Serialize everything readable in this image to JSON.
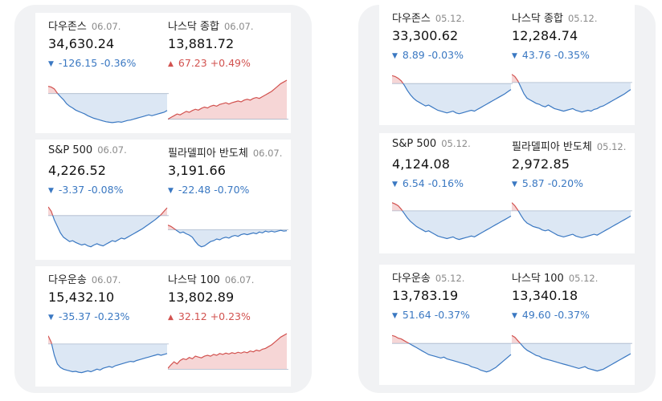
{
  "colors": {
    "down": "#3a78c2",
    "up": "#d2524f"
  },
  "icons": {
    "down": "triangle-down-icon",
    "up": "triangle-up-icon"
  },
  "panels": [
    {
      "cards": [
        {
          "name": "다우존스",
          "date": "06.07.",
          "price": "34,630.24",
          "change": "-126.15",
          "percent": "-0.36%",
          "direction": "down",
          "sparkline": [
            0.86,
            0.84,
            0.8,
            0.7,
            0.62,
            0.55,
            0.46,
            0.4,
            0.36,
            0.31,
            0.28,
            0.25,
            0.22,
            0.18,
            0.15,
            0.12,
            0.1,
            0.08,
            0.06,
            0.04,
            0.03,
            0.02,
            0.03,
            0.04,
            0.03,
            0.05,
            0.07,
            0.08,
            0.1,
            0.12,
            0.14,
            0.16,
            0.18,
            0.2,
            0.18,
            0.2,
            0.22,
            0.24,
            0.26,
            0.3
          ]
        },
        {
          "name": "나스닥 종합",
          "date": "06.07.",
          "price": "13,881.72",
          "change": "67.23",
          "percent": "+0.49%",
          "direction": "up",
          "sparkline": [
            0.1,
            0.14,
            0.18,
            0.22,
            0.2,
            0.24,
            0.28,
            0.26,
            0.3,
            0.33,
            0.31,
            0.35,
            0.38,
            0.36,
            0.4,
            0.42,
            0.4,
            0.44,
            0.46,
            0.48,
            0.45,
            0.48,
            0.5,
            0.52,
            0.5,
            0.54,
            0.56,
            0.54,
            0.58,
            0.6,
            0.58,
            0.62,
            0.66,
            0.7,
            0.74,
            0.8,
            0.86,
            0.92,
            0.96,
            1.0
          ]
        },
        {
          "name": "S&P 500",
          "date": "06.07.",
          "price": "4,226.52",
          "change": "-3.37",
          "percent": "-0.08%",
          "direction": "down",
          "sparkline": [
            1.0,
            0.9,
            0.7,
            0.55,
            0.4,
            0.3,
            0.25,
            0.2,
            0.22,
            0.18,
            0.15,
            0.12,
            0.14,
            0.1,
            0.08,
            0.12,
            0.15,
            0.12,
            0.1,
            0.14,
            0.18,
            0.22,
            0.2,
            0.24,
            0.28,
            0.26,
            0.3,
            0.34,
            0.38,
            0.42,
            0.46,
            0.5,
            0.55,
            0.6,
            0.65,
            0.7,
            0.76,
            0.82,
            0.9,
            0.98
          ]
        },
        {
          "name": "필라델피아 반도체",
          "date": "06.07.",
          "price": "3,191.66",
          "change": "-22.48",
          "percent": "-0.70%",
          "direction": "down",
          "sparkline": [
            0.58,
            0.55,
            0.5,
            0.45,
            0.4,
            0.42,
            0.38,
            0.35,
            0.3,
            0.2,
            0.12,
            0.08,
            0.1,
            0.15,
            0.2,
            0.22,
            0.26,
            0.24,
            0.28,
            0.3,
            0.28,
            0.32,
            0.34,
            0.32,
            0.36,
            0.38,
            0.36,
            0.38,
            0.4,
            0.38,
            0.42,
            0.4,
            0.44,
            0.42,
            0.44,
            0.42,
            0.44,
            0.46,
            0.44,
            0.45
          ]
        },
        {
          "name": "다우운송",
          "date": "06.07.",
          "price": "15,432.10",
          "change": "-35.37",
          "percent": "-0.23%",
          "direction": "down",
          "sparkline": [
            0.95,
            0.8,
            0.5,
            0.3,
            0.22,
            0.18,
            0.16,
            0.14,
            0.12,
            0.13,
            0.11,
            0.1,
            0.12,
            0.14,
            0.12,
            0.15,
            0.18,
            0.16,
            0.2,
            0.22,
            0.24,
            0.22,
            0.26,
            0.28,
            0.3,
            0.32,
            0.34,
            0.36,
            0.35,
            0.38,
            0.4,
            0.42,
            0.44,
            0.46,
            0.48,
            0.5,
            0.52,
            0.5,
            0.52,
            0.54
          ]
        },
        {
          "name": "나스닥 100",
          "date": "06.07.",
          "price": "13,802.89",
          "change": "32.12",
          "percent": "+0.23%",
          "direction": "up",
          "sparkline": [
            0.2,
            0.28,
            0.35,
            0.3,
            0.38,
            0.42,
            0.4,
            0.45,
            0.42,
            0.48,
            0.46,
            0.44,
            0.48,
            0.5,
            0.48,
            0.52,
            0.5,
            0.54,
            0.52,
            0.55,
            0.53,
            0.56,
            0.54,
            0.57,
            0.55,
            0.58,
            0.56,
            0.6,
            0.58,
            0.62,
            0.6,
            0.64,
            0.66,
            0.7,
            0.74,
            0.8,
            0.86,
            0.92,
            0.96,
            1.0
          ]
        }
      ]
    },
    {
      "cards": [
        {
          "name": "다우존스",
          "date": "05.12.",
          "price": "33,300.62",
          "change": "8.89",
          "percent": "-0.03%",
          "direction": "down",
          "sparkline": [
            0.92,
            0.9,
            0.86,
            0.8,
            0.7,
            0.58,
            0.48,
            0.4,
            0.34,
            0.3,
            0.26,
            0.22,
            0.24,
            0.2,
            0.16,
            0.12,
            0.1,
            0.08,
            0.06,
            0.08,
            0.1,
            0.06,
            0.04,
            0.06,
            0.08,
            0.1,
            0.12,
            0.1,
            0.14,
            0.18,
            0.22,
            0.26,
            0.3,
            0.34,
            0.38,
            0.42,
            0.46,
            0.5,
            0.55,
            0.6
          ]
        },
        {
          "name": "나스닥 종합",
          "date": "05.12.",
          "price": "12,284.74",
          "change": "43.76",
          "percent": "-0.35%",
          "direction": "down",
          "sparkline": [
            0.95,
            0.9,
            0.8,
            0.65,
            0.5,
            0.4,
            0.36,
            0.32,
            0.28,
            0.26,
            0.22,
            0.2,
            0.24,
            0.2,
            0.16,
            0.14,
            0.12,
            0.1,
            0.12,
            0.14,
            0.16,
            0.12,
            0.1,
            0.08,
            0.1,
            0.12,
            0.1,
            0.14,
            0.16,
            0.2,
            0.22,
            0.26,
            0.3,
            0.34,
            0.38,
            0.42,
            0.46,
            0.5,
            0.55,
            0.6
          ]
        },
        {
          "name": "S&P 500",
          "date": "05.12.",
          "price": "4,124.08",
          "change": "6.54",
          "percent": "-0.16%",
          "direction": "down",
          "sparkline": [
            0.95,
            0.92,
            0.88,
            0.8,
            0.7,
            0.6,
            0.52,
            0.46,
            0.4,
            0.36,
            0.32,
            0.28,
            0.3,
            0.26,
            0.22,
            0.18,
            0.16,
            0.14,
            0.12,
            0.14,
            0.16,
            0.12,
            0.1,
            0.12,
            0.14,
            0.16,
            0.18,
            0.16,
            0.2,
            0.24,
            0.28,
            0.32,
            0.36,
            0.4,
            0.44,
            0.48,
            0.52,
            0.56,
            0.6,
            0.64
          ]
        },
        {
          "name": "필라델피아 반도체",
          "date": "05.12.",
          "price": "2,972.85",
          "change": "5.87",
          "percent": "-0.20%",
          "direction": "down",
          "sparkline": [
            0.95,
            0.88,
            0.78,
            0.66,
            0.55,
            0.48,
            0.44,
            0.4,
            0.38,
            0.36,
            0.32,
            0.3,
            0.32,
            0.28,
            0.24,
            0.2,
            0.18,
            0.16,
            0.18,
            0.2,
            0.22,
            0.18,
            0.16,
            0.14,
            0.16,
            0.18,
            0.2,
            0.22,
            0.2,
            0.24,
            0.28,
            0.32,
            0.36,
            0.4,
            0.44,
            0.48,
            0.52,
            0.56,
            0.6,
            0.64
          ]
        },
        {
          "name": "다우운송",
          "date": "05.12.",
          "price": "13,783.19",
          "change": "51.64",
          "percent": "-0.37%",
          "direction": "down",
          "sparkline": [
            0.92,
            0.9,
            0.86,
            0.84,
            0.8,
            0.76,
            0.72,
            0.68,
            0.64,
            0.6,
            0.56,
            0.52,
            0.48,
            0.46,
            0.44,
            0.42,
            0.4,
            0.42,
            0.38,
            0.36,
            0.34,
            0.32,
            0.3,
            0.28,
            0.26,
            0.24,
            0.2,
            0.18,
            0.16,
            0.12,
            0.1,
            0.08,
            0.1,
            0.14,
            0.18,
            0.24,
            0.3,
            0.36,
            0.42,
            0.48
          ]
        },
        {
          "name": "나스닥 100",
          "date": "05.12.",
          "price": "13,340.18",
          "change": "49.60",
          "percent": "-0.37%",
          "direction": "down",
          "sparkline": [
            0.92,
            0.88,
            0.8,
            0.72,
            0.64,
            0.58,
            0.54,
            0.5,
            0.46,
            0.44,
            0.4,
            0.38,
            0.36,
            0.34,
            0.32,
            0.3,
            0.28,
            0.26,
            0.24,
            0.22,
            0.2,
            0.18,
            0.16,
            0.18,
            0.2,
            0.16,
            0.14,
            0.12,
            0.1,
            0.12,
            0.14,
            0.18,
            0.22,
            0.26,
            0.3,
            0.34,
            0.38,
            0.42,
            0.46,
            0.5
          ]
        }
      ]
    }
  ]
}
